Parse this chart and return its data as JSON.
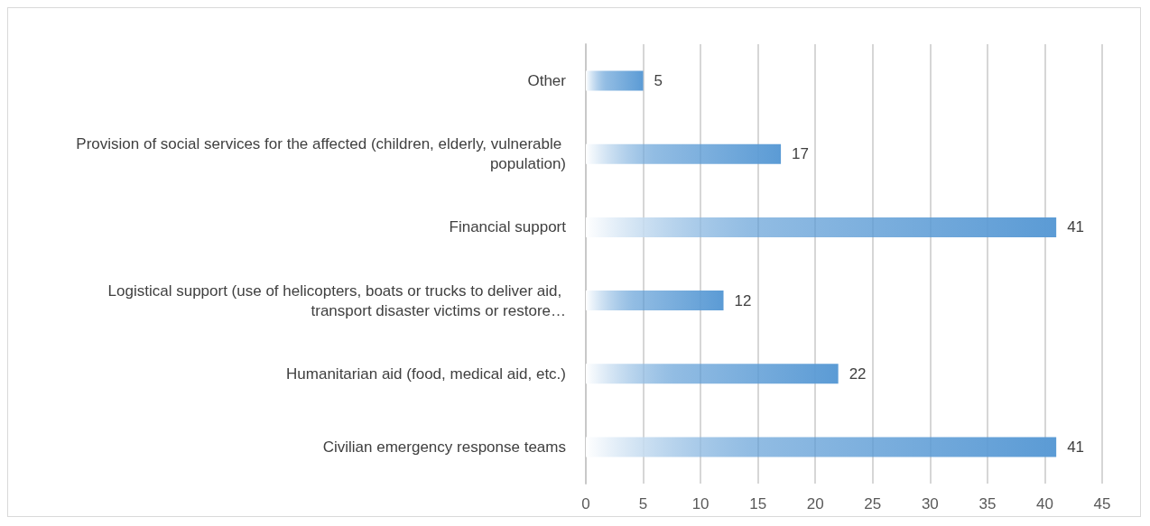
{
  "chart_data": {
    "type": "bar",
    "orientation": "horizontal",
    "categories": [
      "Other",
      "Provision of social services for the affected (children, elderly, vulnerable population)",
      "Financial support",
      "Logistical support (use of helicopters, boats or trucks to deliver aid, transport disaster victims or restore…",
      "Humanitarian aid (food, medical aid, etc.)",
      "Civilian emergency response teams"
    ],
    "values": [
      5,
      17,
      41,
      12,
      22,
      41
    ],
    "color": "#5b9bd5",
    "xlim": [
      0,
      45
    ],
    "xticks": [
      0,
      5,
      10,
      15,
      20,
      25,
      30,
      35,
      40,
      45
    ],
    "grid": "x",
    "data_labels": true
  }
}
